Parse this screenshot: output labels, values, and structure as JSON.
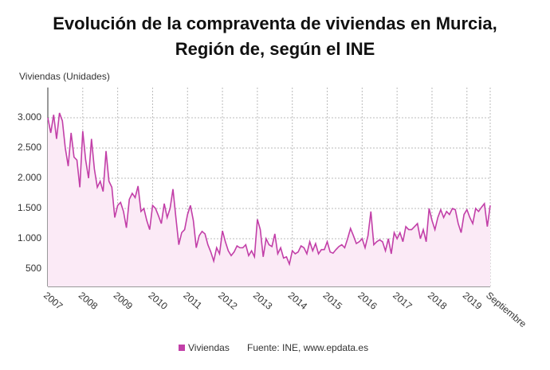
{
  "chart_data": {
    "type": "line",
    "title": "Evolución de la compraventa de viviendas en Murcia, Región de, según el INE",
    "y_label": "Viviendas (Unidades)",
    "source": "Fuente: INE, www.epdata.es",
    "categories": [
      "2007",
      null,
      null,
      null,
      null,
      null,
      null,
      null,
      null,
      null,
      null,
      null,
      "2008",
      null,
      null,
      null,
      null,
      null,
      null,
      null,
      null,
      null,
      null,
      null,
      "2009",
      null,
      null,
      null,
      null,
      null,
      null,
      null,
      null,
      null,
      null,
      null,
      "2010",
      null,
      null,
      null,
      null,
      null,
      null,
      null,
      null,
      null,
      null,
      null,
      "2011",
      null,
      null,
      null,
      null,
      null,
      null,
      null,
      null,
      null,
      null,
      null,
      "2012",
      null,
      null,
      null,
      null,
      null,
      null,
      null,
      null,
      null,
      null,
      null,
      "2013",
      null,
      null,
      null,
      null,
      null,
      null,
      null,
      null,
      null,
      null,
      null,
      "2014",
      null,
      null,
      null,
      null,
      null,
      null,
      null,
      null,
      null,
      null,
      null,
      "2015",
      null,
      null,
      null,
      null,
      null,
      null,
      null,
      null,
      null,
      null,
      null,
      "2016",
      null,
      null,
      null,
      null,
      null,
      null,
      null,
      null,
      null,
      null,
      null,
      "2017",
      null,
      null,
      null,
      null,
      null,
      null,
      null,
      null,
      null,
      null,
      null,
      "2018",
      null,
      null,
      null,
      null,
      null,
      null,
      null,
      null,
      null,
      null,
      null,
      "2019",
      null,
      null,
      null,
      null,
      null,
      null,
      null,
      "Septiembre"
    ],
    "series": [
      {
        "name": "Viviendas",
        "color": "#c23fa8",
        "fill": "#fbeaf6",
        "values": [
          3000,
          2750,
          3050,
          2650,
          3080,
          2950,
          2500,
          2200,
          2750,
          2350,
          2300,
          1850,
          2780,
          2300,
          2000,
          2650,
          2150,
          1850,
          1950,
          1780,
          2450,
          1950,
          1850,
          1350,
          1550,
          1600,
          1450,
          1180,
          1650,
          1750,
          1680,
          1870,
          1450,
          1500,
          1300,
          1150,
          1550,
          1500,
          1380,
          1250,
          1580,
          1350,
          1500,
          1820,
          1350,
          900,
          1100,
          1150,
          1400,
          1550,
          1300,
          850,
          1050,
          1120,
          1080,
          900,
          780,
          630,
          850,
          750,
          1130,
          950,
          800,
          720,
          780,
          880,
          850,
          850,
          900,
          720,
          800,
          700,
          1320,
          1150,
          700,
          1000,
          900,
          870,
          1080,
          750,
          850,
          680,
          700,
          580,
          800,
          750,
          780,
          880,
          850,
          750,
          950,
          800,
          920,
          750,
          820,
          820,
          950,
          780,
          760,
          820,
          870,
          900,
          850,
          1000,
          1170,
          1050,
          920,
          950,
          1000,
          850,
          1050,
          1450,
          900,
          950,
          980,
          950,
          800,
          1000,
          750,
          1100,
          1000,
          1100,
          950,
          1200,
          1150,
          1150,
          1200,
          1250,
          1000,
          1150,
          950,
          1500,
          1300,
          1150,
          1350,
          1480,
          1350,
          1450,
          1400,
          1500,
          1480,
          1250,
          1100,
          1400,
          1480,
          1350,
          1250,
          1500,
          1450,
          1520,
          1580,
          1200,
          1550
        ]
      }
    ],
    "ylim": [
      210,
      3500
    ],
    "yticks": [
      500,
      {
        "value": 1000,
        "label": "1.000"
      },
      {
        "value": 1500,
        "label": "1.500"
      },
      {
        "value": 2000,
        "label": "2.000"
      },
      {
        "value": 2500,
        "label": "2.500"
      },
      {
        "value": 3000,
        "label": "3.000"
      }
    ],
    "grid": true
  }
}
